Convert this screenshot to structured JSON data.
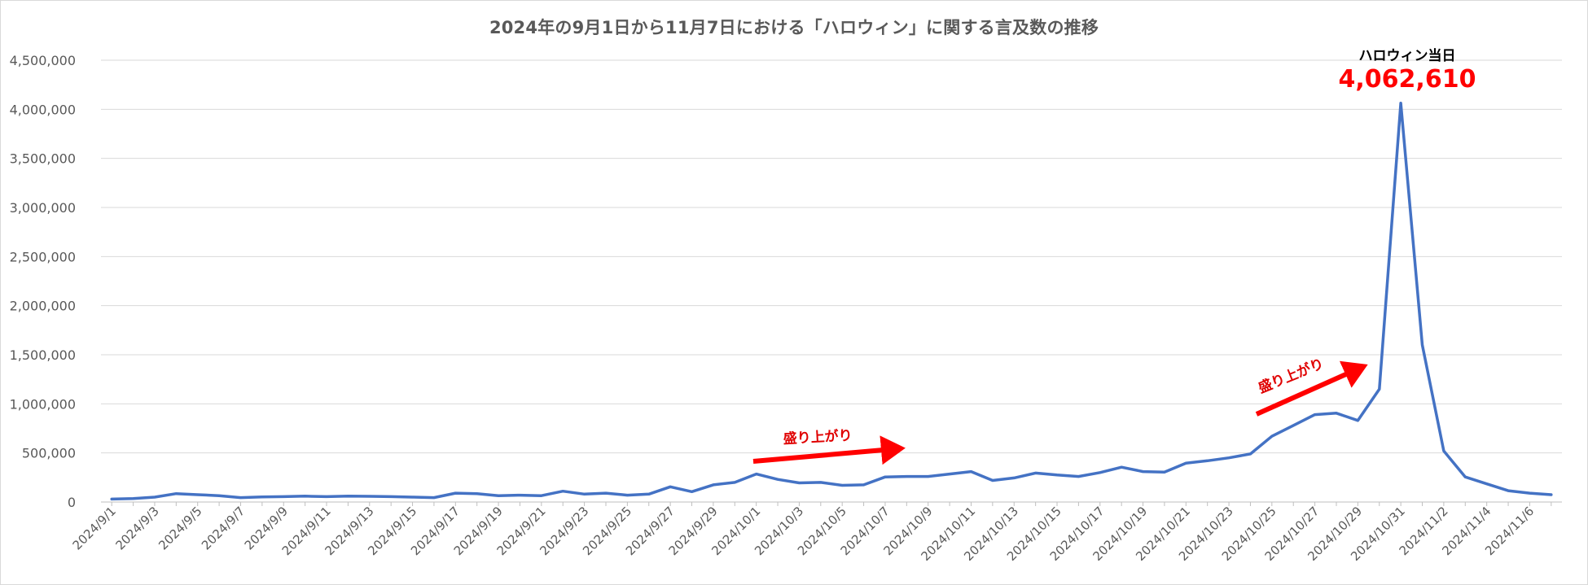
{
  "chart_data": {
    "type": "line",
    "title": "2024年の9月1日から11月7日における「ハロウィン」に関する言及数の推移",
    "xlabel": "",
    "ylabel": "",
    "ylim": [
      0,
      4500000
    ],
    "grid": true,
    "legend": "none",
    "line_color": "#4472c4",
    "y_ticks": [
      "0",
      "500,000",
      "1,000,000",
      "1,500,000",
      "2,000,000",
      "2,500,000",
      "3,000,000",
      "3,500,000",
      "4,000,000",
      "4,500,000"
    ],
    "x_tick_labels": [
      "2024/9/1",
      "2024/9/3",
      "2024/9/5",
      "2024/9/7",
      "2024/9/9",
      "2024/9/11",
      "2024/9/13",
      "2024/9/15",
      "2024/9/17",
      "2024/9/19",
      "2024/9/21",
      "2024/9/23",
      "2024/9/25",
      "2024/9/27",
      "2024/9/29",
      "2024/10/1",
      "2024/10/3",
      "2024/10/5",
      "2024/10/7",
      "2024/10/9",
      "2024/10/11",
      "2024/10/13",
      "2024/10/15",
      "2024/10/17",
      "2024/10/19",
      "2024/10/21",
      "2024/10/23",
      "2024/10/25",
      "2024/10/27",
      "2024/10/29",
      "2024/10/31",
      "2024/11/2",
      "2024/11/4",
      "2024/11/6"
    ],
    "x": [
      "2024/9/1",
      "2024/9/2",
      "2024/9/3",
      "2024/9/4",
      "2024/9/5",
      "2024/9/6",
      "2024/9/7",
      "2024/9/8",
      "2024/9/9",
      "2024/9/10",
      "2024/9/11",
      "2024/9/12",
      "2024/9/13",
      "2024/9/14",
      "2024/9/15",
      "2024/9/16",
      "2024/9/17",
      "2024/9/18",
      "2024/9/19",
      "2024/9/20",
      "2024/9/21",
      "2024/9/22",
      "2024/9/23",
      "2024/9/24",
      "2024/9/25",
      "2024/9/26",
      "2024/9/27",
      "2024/9/28",
      "2024/9/29",
      "2024/9/30",
      "2024/10/1",
      "2024/10/2",
      "2024/10/3",
      "2024/10/4",
      "2024/10/5",
      "2024/10/6",
      "2024/10/7",
      "2024/10/8",
      "2024/10/9",
      "2024/10/10",
      "2024/10/11",
      "2024/10/12",
      "2024/10/13",
      "2024/10/14",
      "2024/10/15",
      "2024/10/16",
      "2024/10/17",
      "2024/10/18",
      "2024/10/19",
      "2024/10/20",
      "2024/10/21",
      "2024/10/22",
      "2024/10/23",
      "2024/10/24",
      "2024/10/25",
      "2024/10/26",
      "2024/10/27",
      "2024/10/28",
      "2024/10/29",
      "2024/10/30",
      "2024/10/31",
      "2024/11/1",
      "2024/11/2",
      "2024/11/3",
      "2024/11/4",
      "2024/11/5",
      "2024/11/6",
      "2024/11/7"
    ],
    "values": [
      30000,
      35000,
      50000,
      85000,
      75000,
      65000,
      45000,
      52000,
      55000,
      60000,
      55000,
      60000,
      58000,
      55000,
      50000,
      45000,
      90000,
      85000,
      65000,
      70000,
      65000,
      110000,
      80000,
      90000,
      70000,
      80000,
      155000,
      105000,
      175000,
      200000,
      285000,
      230000,
      195000,
      200000,
      170000,
      175000,
      255000,
      260000,
      260000,
      285000,
      310000,
      220000,
      245000,
      295000,
      275000,
      260000,
      300000,
      355000,
      310000,
      305000,
      395000,
      420000,
      450000,
      490000,
      670000,
      780000,
      890000,
      905000,
      830000,
      1150000,
      4062610,
      1600000,
      520000,
      255000,
      185000,
      115000,
      90000,
      75000
    ],
    "annotations": {
      "peak_label": "ハロウィン当日",
      "peak_value": "4,062,610",
      "rise_label_1": "盛り上がり",
      "rise_label_2": "盛り上がり",
      "arrow_color": "#ff0000"
    }
  }
}
